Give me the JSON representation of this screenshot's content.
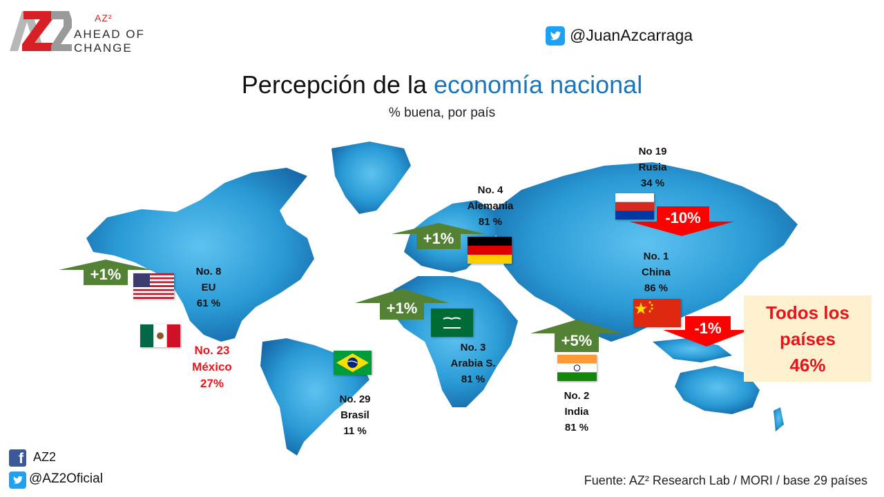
{
  "brand": {
    "logo_text": "AZ2",
    "superscript": "AZ²",
    "tagline_line1": "AHEAD OF",
    "tagline_line2": "CHANGE"
  },
  "header": {
    "twitter_handle": "@JuanAzcarraga"
  },
  "title": {
    "part1": "Percepción de la ",
    "highlight": "economía nacional"
  },
  "subtitle": "% buena, por país",
  "countries": {
    "eu": {
      "rank": "No. 8",
      "name": "EU",
      "value": "61 %"
    },
    "mexico": {
      "rank": "No. 23",
      "name": "México",
      "value": "27%"
    },
    "brasil": {
      "rank": "No. 29",
      "name": "Brasil",
      "value": "11 %"
    },
    "alemania": {
      "rank": "No. 4",
      "name": "Alemania",
      "value": "81 %"
    },
    "arabia": {
      "rank": "No. 3",
      "name": "Arabia S.",
      "value": "81 %"
    },
    "india": {
      "rank": "No. 2",
      "name": "India",
      "value": "81 %"
    },
    "china": {
      "rank": "No. 1",
      "name": "China",
      "value": "86 %"
    },
    "rusia": {
      "rank": "No 19",
      "name": "Rusia",
      "value": "34 %"
    }
  },
  "changes": {
    "eu": "+1%",
    "alemania": "+1%",
    "arabia": "+1%",
    "india": "+5%",
    "rusia": "-10%",
    "china": "-1%"
  },
  "colors": {
    "up_arrow": "#548235",
    "down_arrow": "#ff0000",
    "highlight": "#1b75bc",
    "map": "#2a9bd6"
  },
  "summary": {
    "line1": "Todos los",
    "line2": "países",
    "line3": "46%"
  },
  "footer": {
    "facebook": "AZ2",
    "twitter": "@AZ2Oficial",
    "source": "Fuente: AZ² Research Lab / MORI / base 29 países"
  }
}
